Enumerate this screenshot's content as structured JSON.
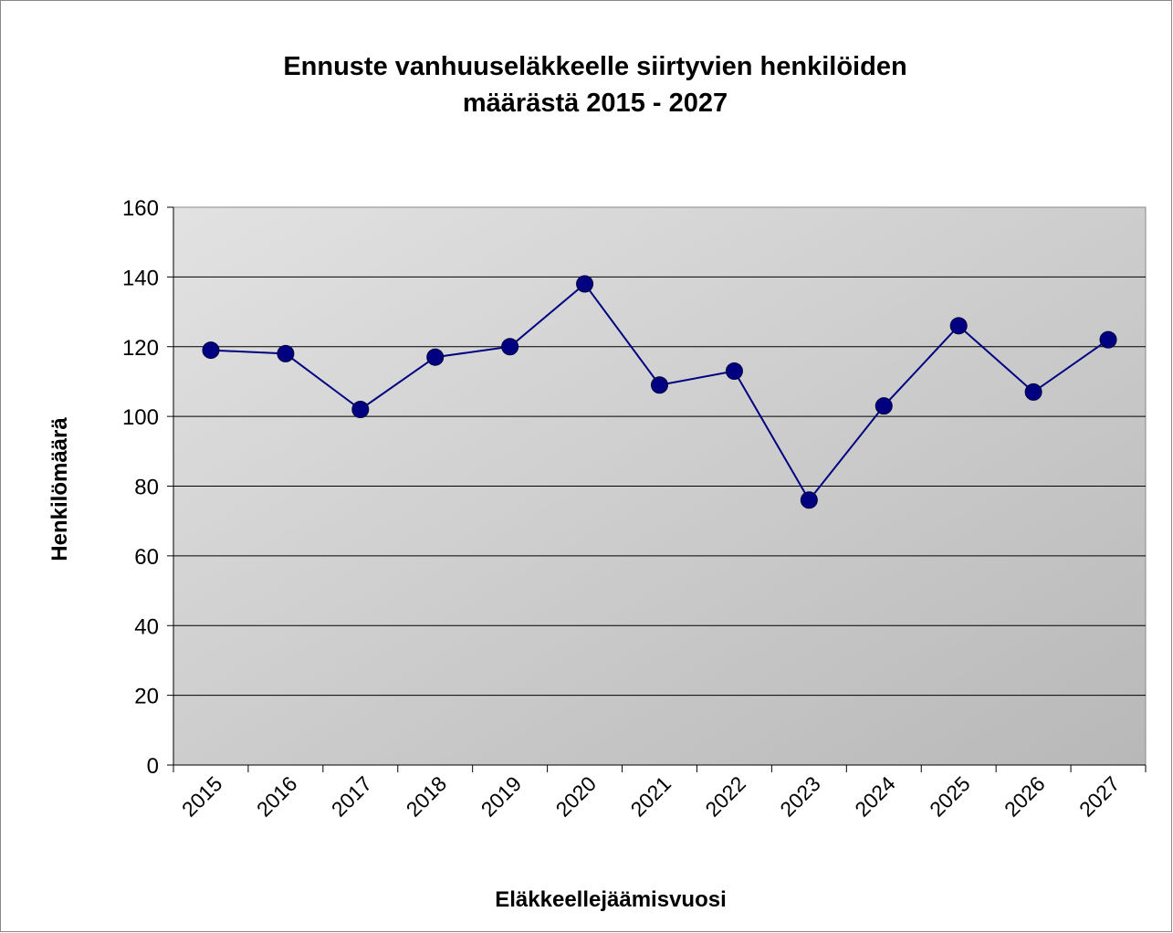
{
  "chart_data": {
    "type": "line",
    "title": [
      "Ennuste vanhuuseläkkeelle siirtyvien henkilöiden",
      "määrästä 2015 - 2027"
    ],
    "x_label": "Eläkkeellejäämisvuosi",
    "y_label": "Henkilömäärä",
    "categories": [
      "2015",
      "2016",
      "2017",
      "2018",
      "2019",
      "2020",
      "2021",
      "2022",
      "2023",
      "2024",
      "2025",
      "2026",
      "2027"
    ],
    "series": [
      {
        "name": "Henkilömäärä",
        "color": "#000080",
        "values": [
          119,
          118,
          102,
          117,
          120,
          138,
          109,
          113,
          76,
          103,
          126,
          107,
          122
        ]
      }
    ],
    "ylim": [
      0,
      160
    ],
    "yticks": [
      0,
      20,
      40,
      60,
      80,
      100,
      120,
      140,
      160
    ],
    "grid": true
  }
}
